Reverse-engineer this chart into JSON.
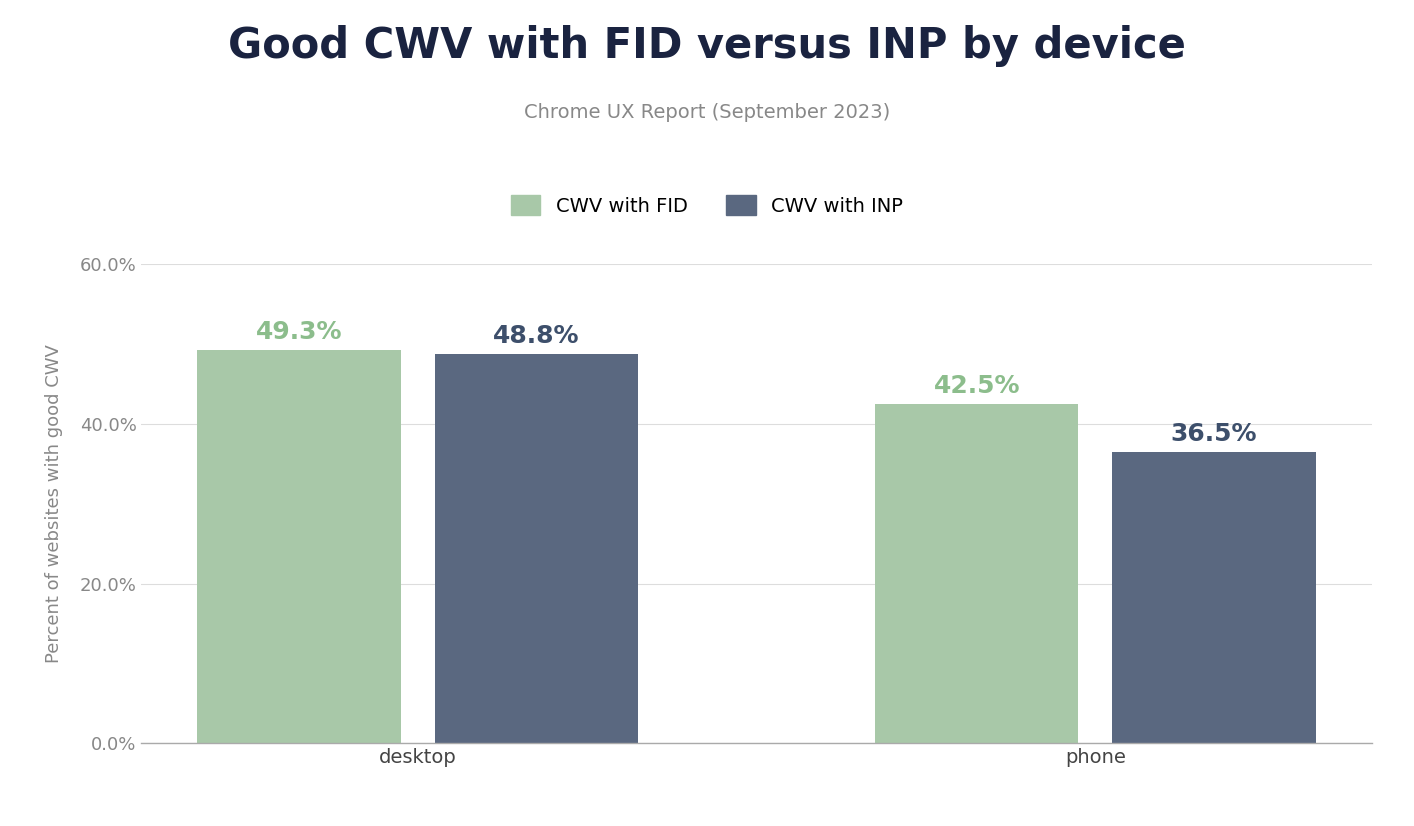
{
  "title": "Good CWV with FID versus INP by device",
  "subtitle": "Chrome UX Report (September 2023)",
  "categories": [
    "desktop",
    "phone"
  ],
  "series": [
    {
      "label": "CWV with FID",
      "values": [
        49.3,
        42.5
      ],
      "color": "#a8c8a8"
    },
    {
      "label": "CWV with INP",
      "values": [
        48.8,
        36.5
      ],
      "color": "#5a6880"
    }
  ],
  "ylabel": "Percent of websites with good CWV",
  "ylim": [
    0,
    60
  ],
  "yticks": [
    0,
    20,
    40,
    60
  ],
  "ytick_labels": [
    "0.0%",
    "20.0%",
    "40.0%",
    "60.0%"
  ],
  "background_color": "#ffffff",
  "title_fontsize": 30,
  "title_fontweight": "bold",
  "title_color": "#1a2340",
  "subtitle_fontsize": 14,
  "subtitle_color": "#888888",
  "ylabel_fontsize": 13,
  "ylabel_color": "#888888",
  "xtick_fontsize": 14,
  "ytick_fontsize": 13,
  "bar_width": 0.3,
  "bar_gap": 0.05,
  "annotation_fontsize": 18,
  "annotation_fontweight": "bold",
  "fid_annotation_color": "#8cbd8c",
  "inp_annotation_color": "#3d4f6b",
  "legend_fontsize": 14,
  "grid_color": "#dddddd",
  "axis_color": "#aaaaaa"
}
